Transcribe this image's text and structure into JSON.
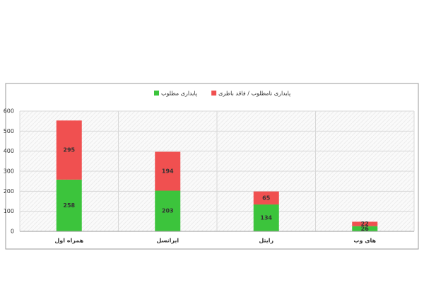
{
  "chart_data": {
    "type": "stacked_bar",
    "categories": [
      "همراه اول",
      "ایرانسل",
      "رایتل",
      "های وب"
    ],
    "series": [
      {
        "name": "پایداری مطلوب",
        "color": "#3cc43c",
        "values": [
          258,
          203,
          134,
          26
        ]
      },
      {
        "name": "پایداری نامطلوب / فاقد باطری",
        "color": "#f05050",
        "values": [
          295,
          194,
          65,
          22
        ]
      }
    ],
    "ylim": [
      0,
      600
    ],
    "yticks": [
      0,
      100,
      200,
      300,
      400,
      500,
      600
    ],
    "grid": true,
    "legend": "top"
  }
}
